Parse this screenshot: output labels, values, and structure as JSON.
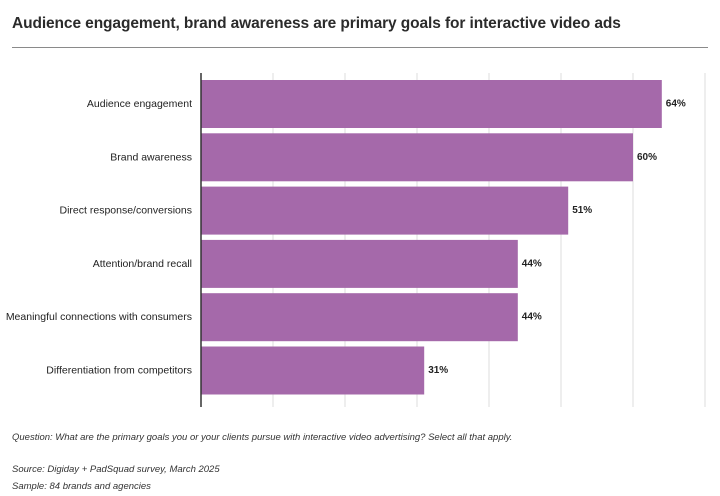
{
  "title": "Audience engagement, brand awareness are primary goals for interactive video ads",
  "footnotes": {
    "question": "Question: What are the primary goals you or your clients pursue with interactive video advertising? Select all that apply.",
    "source": "Source: Digiday + PadSquad survey, March 2025",
    "sample": "Sample: 84 brands and agencies"
  },
  "colors": {
    "bar": "#a569aa",
    "axis": "#333333",
    "grid": "#dddddd"
  },
  "chart_data": {
    "type": "bar",
    "orientation": "horizontal",
    "categories": [
      "Audience engagement",
      "Brand awareness",
      "Direct response/conversions",
      "Attention/brand recall",
      "Meaningful connections with consumers",
      "Differentiation from competitors"
    ],
    "values": [
      64,
      60,
      51,
      44,
      44,
      31
    ],
    "value_labels": [
      "64%",
      "60%",
      "51%",
      "44%",
      "44%",
      "31%"
    ],
    "xlim": [
      0,
      70
    ],
    "grid": true,
    "xlabel": "",
    "ylabel": ""
  }
}
